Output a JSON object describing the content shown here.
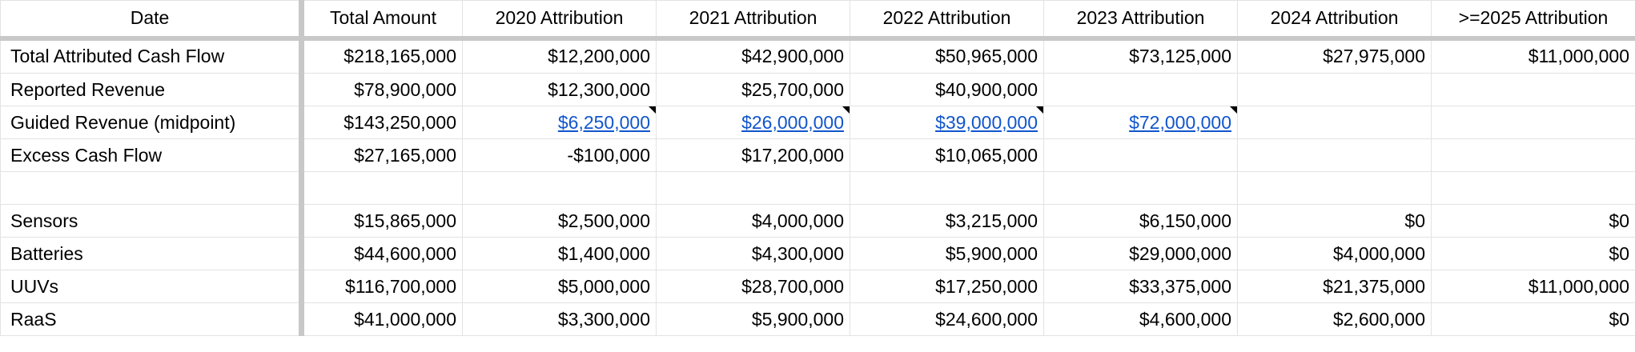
{
  "columns": [
    "Date",
    "Total Amount",
    "2020 Attribution",
    "2021 Attribution",
    "2022 Attribution",
    "2023 Attribution",
    "2024 Attribution",
    ">=2025 Attribution"
  ],
  "rows": [
    {
      "label": "Total Attributed Cash Flow",
      "cells": [
        "$218,165,000",
        "$12,200,000",
        "$42,900,000",
        "$50,965,000",
        "$73,125,000",
        "$27,975,000",
        "$11,000,000"
      ],
      "links": [
        false,
        false,
        false,
        false,
        false,
        false,
        false
      ]
    },
    {
      "label": "Reported Revenue",
      "cells": [
        "$78,900,000",
        "$12,300,000",
        "$25,700,000",
        "$40,900,000",
        "",
        "",
        ""
      ],
      "links": [
        false,
        false,
        false,
        false,
        false,
        false,
        false
      ]
    },
    {
      "label": "Guided Revenue (midpoint)",
      "cells": [
        "$143,250,000",
        "$6,250,000",
        "$26,000,000",
        "$39,000,000",
        "$72,000,000",
        "",
        ""
      ],
      "links": [
        false,
        true,
        true,
        true,
        true,
        false,
        false
      ]
    },
    {
      "label": "Excess Cash Flow",
      "cells": [
        "$27,165,000",
        "-$100,000",
        "$17,200,000",
        "$10,065,000",
        "",
        "",
        ""
      ],
      "links": [
        false,
        false,
        false,
        false,
        false,
        false,
        false
      ]
    },
    {
      "label": "",
      "cells": [
        "",
        "",
        "",
        "",
        "",
        "",
        ""
      ],
      "links": [
        false,
        false,
        false,
        false,
        false,
        false,
        false
      ]
    },
    {
      "label": "Sensors",
      "cells": [
        "$15,865,000",
        "$2,500,000",
        "$4,000,000",
        "$3,215,000",
        "$6,150,000",
        "$0",
        "$0"
      ],
      "links": [
        false,
        false,
        false,
        false,
        false,
        false,
        false
      ]
    },
    {
      "label": "Batteries",
      "cells": [
        "$44,600,000",
        "$1,400,000",
        "$4,300,000",
        "$5,900,000",
        "$29,000,000",
        "$4,000,000",
        "$0"
      ],
      "links": [
        false,
        false,
        false,
        false,
        false,
        false,
        false
      ]
    },
    {
      "label": "UUVs",
      "cells": [
        "$116,700,000",
        "$5,000,000",
        "$28,700,000",
        "$17,250,000",
        "$33,375,000",
        "$21,375,000",
        "$11,000,000"
      ],
      "links": [
        false,
        false,
        false,
        false,
        false,
        false,
        false
      ]
    },
    {
      "label": "RaaS",
      "cells": [
        "$41,000,000",
        "$3,300,000",
        "$5,900,000",
        "$24,600,000",
        "$4,600,000",
        "$2,600,000",
        "$0"
      ],
      "links": [
        false,
        false,
        false,
        false,
        false,
        false,
        false
      ]
    }
  ],
  "colors": {
    "link": "#1155cc",
    "gridline": "#e2e3e3",
    "frozen_border": "#c8c8c8"
  }
}
